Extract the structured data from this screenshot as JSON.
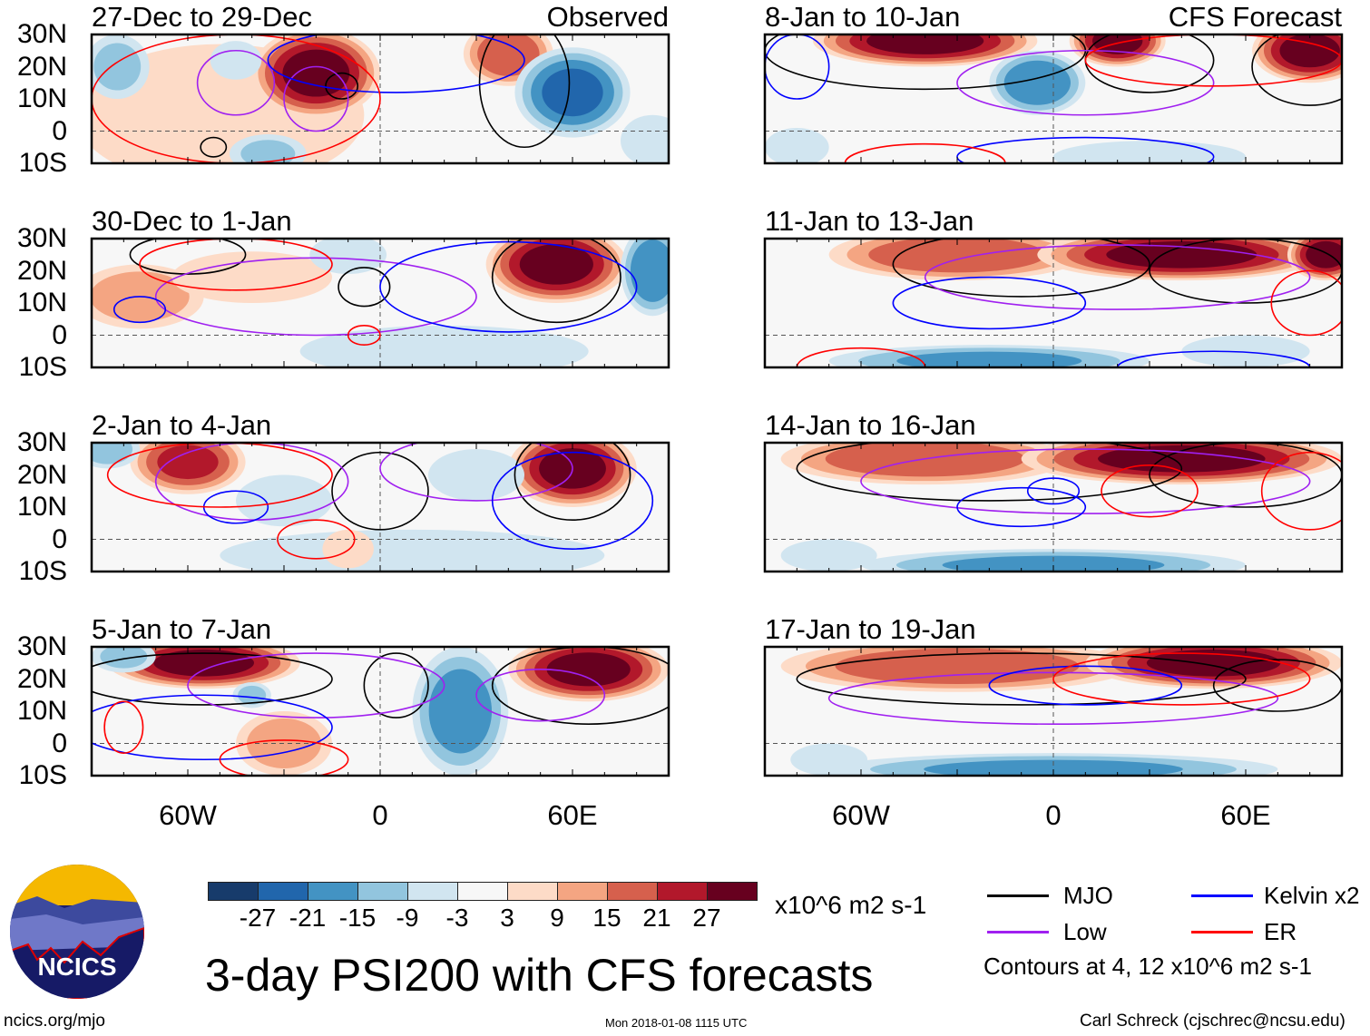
{
  "title": "3-day PSI200 with CFS forecasts",
  "units": "x10^6 m2 s-1",
  "contours_note": "Contours at 4, 12 x10^6 m2 s-1",
  "url": "ncics.org/mjo",
  "timestamp": "Mon 2018-01-08 1115 UTC",
  "author": "Carl Schreck (cjschrec@ncsu.edu)",
  "logo_text": "NCICS",
  "legend": [
    {
      "label": "MJO",
      "color": "#000000"
    },
    {
      "label": "Kelvin x2",
      "color": "#0000ff"
    },
    {
      "label": "Low",
      "color": "#a020f0"
    },
    {
      "label": "ER",
      "color": "#ff0000"
    }
  ],
  "colorbar": {
    "labels": [
      "-27",
      "-21",
      "-15",
      "-9",
      "-3",
      "3",
      "9",
      "15",
      "21",
      "27"
    ],
    "colors": [
      "#173b6b",
      "#2166ac",
      "#4393c3",
      "#92c5de",
      "#d1e5f0",
      "#f7f7f7",
      "#fddbc7",
      "#f4a582",
      "#d6604d",
      "#b2182b",
      "#67001f"
    ]
  },
  "chart_data": {
    "type": "heatmap",
    "ylabels": [
      "30N",
      "20N",
      "10N",
      "0",
      "10S"
    ],
    "xlabels": [
      "60W",
      "0",
      "60E"
    ],
    "lon_range": [
      -90,
      90
    ],
    "lat_range": [
      -10,
      30
    ],
    "columns": [
      {
        "label": "Observed"
      },
      {
        "label": "CFS Forecast"
      }
    ],
    "panels": [
      {
        "title": "27-Dec to 29-Dec",
        "col": 0,
        "row": 0,
        "shading": [
          [
            -50,
            5,
            6,
            45,
            22
          ],
          [
            -20,
            18,
            30,
            20,
            14
          ],
          [
            40,
            24,
            20,
            14,
            10
          ],
          [
            60,
            12,
            -22,
            18,
            14
          ],
          [
            -82,
            20,
            -10,
            10,
            10
          ],
          [
            -35,
            -7,
            -9,
            12,
            6
          ],
          [
            -45,
            22,
            -6,
            8,
            6
          ],
          [
            85,
            -3,
            -6,
            10,
            8
          ]
        ],
        "contours": [
          [
            "k",
            -52,
            -5,
            4,
            3
          ],
          [
            "k",
            -12,
            14,
            5,
            4
          ],
          [
            "k",
            45,
            15,
            14,
            20
          ],
          [
            "p",
            -45,
            15,
            12,
            10
          ],
          [
            "p",
            -20,
            10,
            10,
            10
          ],
          [
            "b",
            5,
            22,
            40,
            10
          ],
          [
            "r",
            -45,
            10,
            45,
            20
          ]
        ]
      },
      {
        "title": "30-Dec to 1-Jan",
        "col": 0,
        "row": 1,
        "shading": [
          [
            -75,
            12,
            12,
            20,
            10
          ],
          [
            -40,
            18,
            6,
            25,
            8
          ],
          [
            55,
            22,
            30,
            22,
            12
          ],
          [
            85,
            20,
            -20,
            10,
            14
          ],
          [
            20,
            -5,
            -6,
            45,
            8
          ],
          [
            -10,
            25,
            -6,
            12,
            6
          ]
        ],
        "contours": [
          [
            "k",
            -60,
            25,
            18,
            6
          ],
          [
            "k",
            -5,
            15,
            8,
            6
          ],
          [
            "k",
            55,
            18,
            20,
            14
          ],
          [
            "p",
            -20,
            12,
            50,
            12
          ],
          [
            "b",
            -75,
            8,
            8,
            4
          ],
          [
            "b",
            40,
            15,
            40,
            14
          ],
          [
            "r",
            -5,
            0,
            5,
            3
          ],
          [
            "r",
            -45,
            22,
            30,
            8
          ]
        ]
      },
      {
        "title": "2-Jan to 4-Jan",
        "col": 0,
        "row": 2,
        "shading": [
          [
            -60,
            24,
            22,
            18,
            10
          ],
          [
            60,
            22,
            30,
            20,
            12
          ],
          [
            -85,
            28,
            -12,
            10,
            6
          ],
          [
            10,
            -5,
            -8,
            60,
            8
          ],
          [
            -10,
            -3,
            8,
            8,
            6
          ],
          [
            -30,
            12,
            -8,
            15,
            8
          ],
          [
            30,
            20,
            -6,
            15,
            8
          ]
        ],
        "contours": [
          [
            "k",
            0,
            15,
            15,
            12
          ],
          [
            "k",
            60,
            20,
            18,
            14
          ],
          [
            "p",
            -40,
            18,
            30,
            12
          ],
          [
            "p",
            30,
            22,
            30,
            10
          ],
          [
            "b",
            -45,
            10,
            10,
            5
          ],
          [
            "b",
            60,
            12,
            25,
            15
          ],
          [
            "r",
            -20,
            0,
            12,
            6
          ],
          [
            "r",
            -50,
            20,
            35,
            10
          ]
        ]
      },
      {
        "title": "5-Jan to 7-Jan",
        "col": 0,
        "row": 3,
        "shading": [
          [
            -55,
            25,
            30,
            30,
            8
          ],
          [
            65,
            23,
            30,
            25,
            10
          ],
          [
            25,
            10,
            -18,
            15,
            20
          ],
          [
            -30,
            0,
            12,
            15,
            10
          ],
          [
            -40,
            15,
            -10,
            6,
            4
          ],
          [
            -80,
            27,
            -10,
            10,
            5
          ]
        ],
        "contours": [
          [
            "k",
            -55,
            20,
            40,
            8
          ],
          [
            "k",
            65,
            18,
            30,
            12
          ],
          [
            "k",
            5,
            18,
            10,
            10
          ],
          [
            "p",
            -20,
            18,
            40,
            10
          ],
          [
            "p",
            50,
            15,
            20,
            8
          ],
          [
            "b",
            -55,
            5,
            40,
            10
          ],
          [
            "r",
            -30,
            -5,
            20,
            6
          ],
          [
            "r",
            -80,
            5,
            6,
            8
          ]
        ]
      },
      {
        "title": "8-Jan to 10-Jan",
        "col": 1,
        "row": 0,
        "shading": [
          [
            -40,
            28,
            30,
            35,
            8
          ],
          [
            20,
            28,
            30,
            15,
            8
          ],
          [
            80,
            25,
            30,
            18,
            10
          ],
          [
            -5,
            15,
            -20,
            15,
            10
          ],
          [
            30,
            -8,
            -8,
            30,
            5
          ],
          [
            -80,
            -5,
            -6,
            10,
            6
          ]
        ],
        "contours": [
          [
            "k",
            -40,
            25,
            50,
            12
          ],
          [
            "k",
            30,
            22,
            20,
            10
          ],
          [
            "k",
            80,
            20,
            18,
            12
          ],
          [
            "p",
            10,
            15,
            40,
            10
          ],
          [
            "b",
            -80,
            20,
            10,
            10
          ],
          [
            "b",
            10,
            -8,
            40,
            6
          ],
          [
            "r",
            -40,
            -10,
            25,
            6
          ],
          [
            "r",
            50,
            22,
            40,
            8
          ]
        ]
      },
      {
        "title": "11-Jan to 13-Jan",
        "col": 1,
        "row": 1,
        "shading": [
          [
            -30,
            25,
            20,
            40,
            8
          ],
          [
            40,
            25,
            30,
            45,
            8
          ],
          [
            85,
            25,
            30,
            12,
            8
          ],
          [
            -20,
            -8,
            -15,
            50,
            5
          ],
          [
            60,
            -5,
            -6,
            20,
            5
          ]
        ],
        "contours": [
          [
            "k",
            -10,
            22,
            40,
            10
          ],
          [
            "k",
            60,
            20,
            30,
            10
          ],
          [
            "p",
            20,
            18,
            60,
            10
          ],
          [
            "b",
            -20,
            10,
            30,
            8
          ],
          [
            "b",
            50,
            -10,
            30,
            5
          ],
          [
            "r",
            -60,
            -10,
            20,
            6
          ],
          [
            "r",
            80,
            10,
            12,
            10
          ]
        ]
      },
      {
        "title": "14-Jan to 16-Jan",
        "col": 1,
        "row": 2,
        "shading": [
          [
            -40,
            25,
            20,
            45,
            8
          ],
          [
            40,
            25,
            30,
            50,
            8
          ],
          [
            0,
            -8,
            -15,
            60,
            5
          ],
          [
            -70,
            -5,
            -8,
            15,
            5
          ]
        ],
        "contours": [
          [
            "k",
            -20,
            22,
            60,
            10
          ],
          [
            "k",
            60,
            20,
            30,
            10
          ],
          [
            "p",
            10,
            18,
            70,
            10
          ],
          [
            "b",
            -10,
            10,
            20,
            6
          ],
          [
            "b",
            0,
            15,
            8,
            4
          ],
          [
            "r",
            30,
            15,
            15,
            8
          ],
          [
            "r",
            80,
            15,
            15,
            12
          ]
        ]
      },
      {
        "title": "17-Jan to 19-Jan",
        "col": 1,
        "row": 3,
        "shading": [
          [
            -30,
            24,
            20,
            55,
            8
          ],
          [
            50,
            25,
            30,
            40,
            8
          ],
          [
            0,
            -8,
            -15,
            70,
            5
          ],
          [
            -70,
            -5,
            -8,
            12,
            5
          ]
        ],
        "contours": [
          [
            "k",
            -10,
            20,
            70,
            8
          ],
          [
            "k",
            70,
            18,
            20,
            8
          ],
          [
            "p",
            0,
            14,
            70,
            8
          ],
          [
            "b",
            10,
            18,
            30,
            6
          ],
          [
            "r",
            40,
            20,
            40,
            8
          ]
        ]
      }
    ]
  }
}
